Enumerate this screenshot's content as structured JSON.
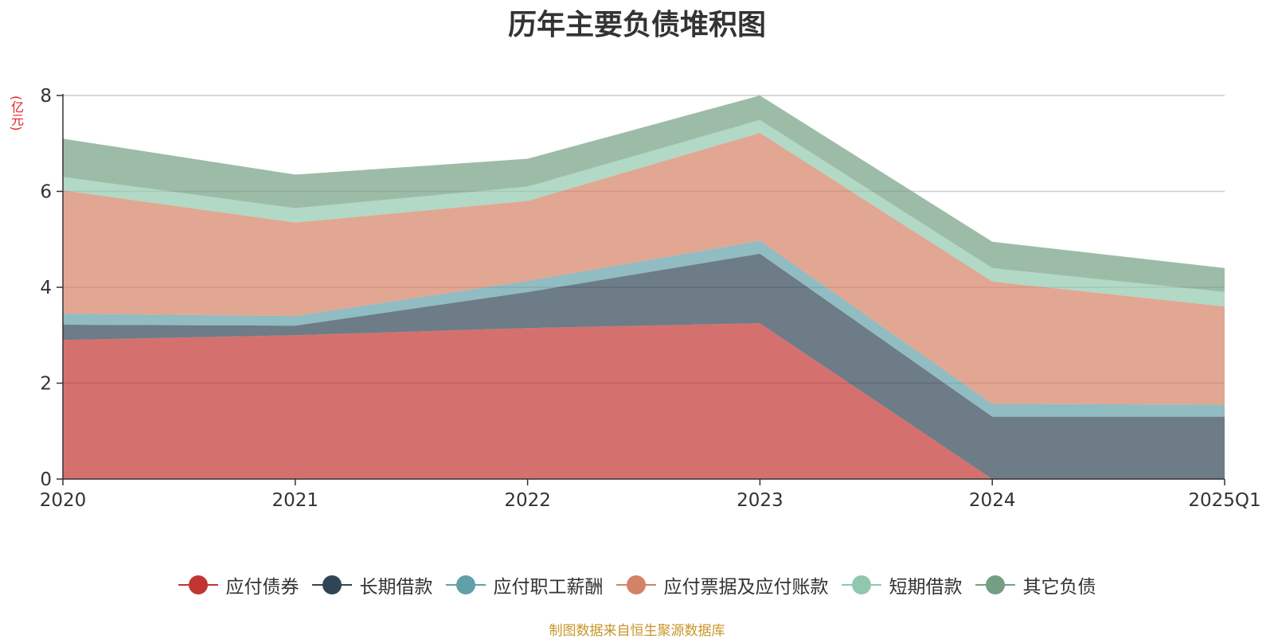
{
  "title": "历年主要负债堆积图",
  "unit_label": "(亿元)",
  "source_text": "制图数据来自恒生聚源数据库",
  "chart_data": {
    "type": "area",
    "stacked": true,
    "title": "历年主要负债堆积图",
    "ylabel": "(亿元)",
    "x": [
      "2020",
      "2021",
      "2022",
      "2023",
      "2024",
      "2025Q1"
    ],
    "ylim": [
      0,
      8
    ],
    "yticks": [
      0,
      2,
      4,
      6,
      8
    ],
    "grid": true,
    "legend_position": "bottom",
    "series": [
      {
        "name": "应付债券",
        "color": "#c23531",
        "values": [
          2.9,
          3.0,
          3.15,
          3.25,
          0.0,
          0.0
        ]
      },
      {
        "name": "长期借款",
        "color": "#2f4554",
        "values": [
          0.32,
          0.2,
          0.75,
          1.45,
          1.3,
          1.3
        ]
      },
      {
        "name": "应付职工薪酬",
        "color": "#61a0a8",
        "values": [
          0.23,
          0.2,
          0.23,
          0.27,
          0.27,
          0.25
        ]
      },
      {
        "name": "应付票据及应付账款",
        "color": "#d48265",
        "values": [
          2.57,
          1.95,
          1.67,
          2.25,
          2.55,
          2.05
        ]
      },
      {
        "name": "短期借款",
        "color": "#91c7ae",
        "values": [
          0.28,
          0.3,
          0.3,
          0.27,
          0.28,
          0.3
        ]
      },
      {
        "name": "其它负债",
        "color": "#749f83",
        "values": [
          0.8,
          0.7,
          0.58,
          0.51,
          0.55,
          0.5
        ]
      }
    ]
  }
}
